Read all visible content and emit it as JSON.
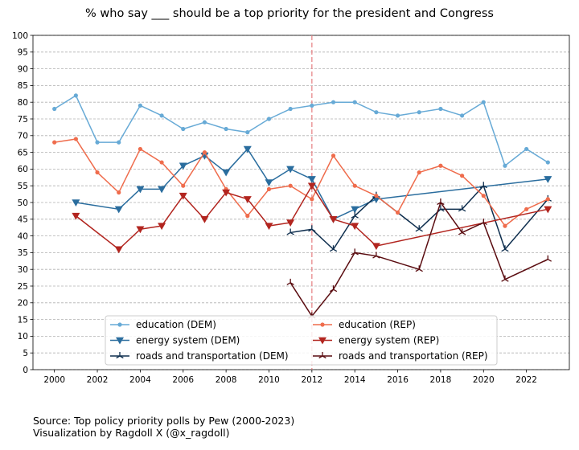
{
  "chart_data": {
    "type": "line",
    "title": "% who say ___ should be a top priority for the president and Congress",
    "xlabel": "",
    "ylabel": "",
    "xlim": [
      1999.0,
      2024.0
    ],
    "ylim": [
      0,
      100
    ],
    "x_ticks": [
      2000,
      2002,
      2004,
      2006,
      2008,
      2010,
      2012,
      2014,
      2016,
      2018,
      2020,
      2022
    ],
    "y_ticks": [
      0,
      5,
      10,
      15,
      20,
      25,
      30,
      35,
      40,
      45,
      50,
      55,
      60,
      65,
      70,
      75,
      80,
      85,
      90,
      95,
      100
    ],
    "grid": "horizontal dashed",
    "legend_position": "lower center",
    "reference_line": {
      "x": 2012,
      "style": "dashed",
      "color": "#e8878a"
    },
    "series": [
      {
        "name": "education (DEM)",
        "color": "#67aad6",
        "marker": "dot",
        "x": [
          2000,
          2001,
          2002,
          2003,
          2004,
          2005,
          2006,
          2007,
          2008,
          2009,
          2010,
          2011,
          2012,
          2013,
          2014,
          2015,
          2016,
          2017,
          2018,
          2019,
          2020,
          2021,
          2022,
          2023
        ],
        "y": [
          78,
          82,
          68,
          68,
          79,
          76,
          72,
          74,
          72,
          71,
          75,
          78,
          79,
          80,
          80,
          77,
          76,
          77,
          78,
          76,
          80,
          61,
          66,
          62
        ]
      },
      {
        "name": "energy system (DEM)",
        "color": "#2a6d9e",
        "marker": "triangle-down",
        "x": [
          2001,
          2003,
          2004,
          2005,
          2006,
          2007,
          2008,
          2009,
          2010,
          2011,
          2012,
          2013,
          2014,
          2015,
          2023
        ],
        "y": [
          50,
          48,
          54,
          54,
          61,
          64,
          59,
          66,
          56,
          60,
          57,
          45,
          48,
          51,
          57
        ]
      },
      {
        "name": "roads and transportation (DEM)",
        "color": "#0e2e4e",
        "marker": "tri",
        "x": [
          2011,
          2012,
          2013,
          2014,
          2015,
          2017,
          2018,
          2019,
          2020,
          2021,
          2023
        ],
        "y": [
          41,
          42,
          36,
          46,
          52,
          42,
          48,
          48,
          55,
          36,
          51
        ]
      },
      {
        "name": "education (REP)",
        "color": "#ef6c4c",
        "marker": "dot",
        "x": [
          2000,
          2001,
          2002,
          2003,
          2004,
          2005,
          2006,
          2007,
          2008,
          2009,
          2010,
          2011,
          2012,
          2013,
          2014,
          2015,
          2016,
          2017,
          2018,
          2019,
          2020,
          2021,
          2022,
          2023
        ],
        "y": [
          68,
          69,
          59,
          53,
          66,
          62,
          55,
          65,
          54,
          46,
          54,
          55,
          51,
          64,
          55,
          52,
          47,
          59,
          61,
          58,
          52,
          43,
          48,
          51
        ]
      },
      {
        "name": "energy system (REP)",
        "color": "#b2251f",
        "marker": "triangle-down",
        "x": [
          2001,
          2003,
          2004,
          2005,
          2006,
          2007,
          2008,
          2009,
          2010,
          2011,
          2012,
          2013,
          2014,
          2015,
          2023
        ],
        "y": [
          46,
          36,
          42,
          43,
          52,
          45,
          53,
          51,
          43,
          44,
          55,
          45,
          43,
          37,
          48
        ]
      },
      {
        "name": "roads and transportation (REP)",
        "color": "#5a0c10",
        "marker": "tri",
        "x": [
          2011,
          2012,
          2013,
          2014,
          2015,
          2017,
          2018,
          2019,
          2020,
          2021,
          2023
        ],
        "y": [
          26,
          16,
          24,
          35,
          34,
          30,
          50,
          41,
          44,
          27,
          33
        ]
      }
    ]
  },
  "source": {
    "line1": "Source: Top policy priority polls by Pew (2000-2023)",
    "line2": "Visualization by Ragdoll X (@x_ragdoll)"
  }
}
